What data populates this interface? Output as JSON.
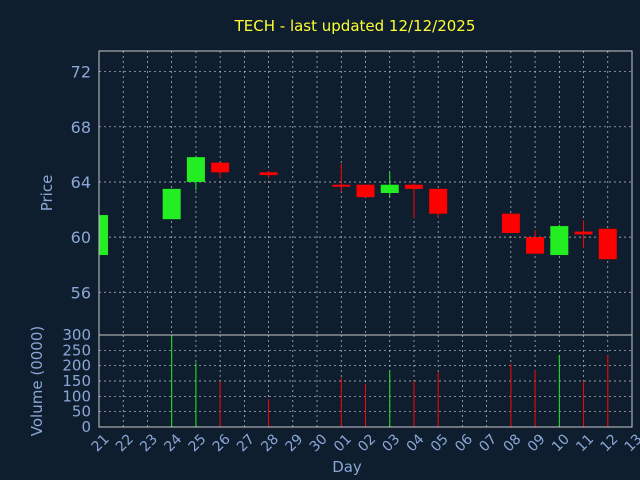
{
  "chart_data": {
    "type": "candlestick",
    "title": "TECH - last updated 12/12/2025",
    "price_axis": {
      "label": "Price",
      "ticks": [
        56,
        60,
        64,
        68,
        72
      ],
      "ylim": [
        52.9,
        73.5
      ]
    },
    "volume_axis": {
      "label": "Volume (0000)",
      "ticks": [
        0,
        50,
        100,
        150,
        200,
        250,
        300
      ],
      "ylim": [
        0,
        300
      ]
    },
    "xlabel": "Day",
    "x_ticks": [
      "21",
      "22",
      "23",
      "24",
      "25",
      "26",
      "27",
      "28",
      "29",
      "30",
      "01",
      "02",
      "03",
      "04",
      "05",
      "06",
      "07",
      "08",
      "09",
      "10",
      "11",
      "12",
      "13"
    ],
    "grid": true,
    "colors": {
      "up": "#22ee22",
      "down": "#ff0000",
      "background": "#0f1e2e",
      "text": "#8aa7d6",
      "title": "#ffff33"
    },
    "candles": [
      {
        "day": "21",
        "open": 58.7,
        "high": 61.6,
        "low": 58.7,
        "close": 61.6,
        "volume": 170
      },
      {
        "day": "24",
        "open": 61.3,
        "high": 63.5,
        "low": 61.3,
        "close": 63.5,
        "volume": 300
      },
      {
        "day": "25",
        "open": 64.0,
        "high": 65.9,
        "low": 63.4,
        "close": 65.8,
        "volume": 210
      },
      {
        "day": "26",
        "open": 65.4,
        "high": 65.4,
        "low": 64.3,
        "close": 64.7,
        "volume": 150
      },
      {
        "day": "28",
        "open": 64.7,
        "high": 64.8,
        "low": 64.3,
        "close": 64.5,
        "volume": 90
      },
      {
        "day": "01",
        "open": 63.8,
        "high": 65.3,
        "low": 63.3,
        "close": 63.7,
        "volume": 160
      },
      {
        "day": "02",
        "open": 63.8,
        "high": 63.8,
        "low": 62.9,
        "close": 62.9,
        "volume": 140
      },
      {
        "day": "03",
        "open": 63.2,
        "high": 64.7,
        "low": 62.9,
        "close": 63.8,
        "volume": 185
      },
      {
        "day": "04",
        "open": 63.8,
        "high": 63.9,
        "low": 61.4,
        "close": 63.5,
        "volume": 150
      },
      {
        "day": "05",
        "open": 63.5,
        "high": 63.5,
        "low": 61.4,
        "close": 61.7,
        "volume": 180
      },
      {
        "day": "08",
        "open": 61.7,
        "high": 61.7,
        "low": 60.3,
        "close": 60.3,
        "volume": 205
      },
      {
        "day": "09",
        "open": 60.0,
        "high": 60.5,
        "low": 58.8,
        "close": 58.8,
        "volume": 185
      },
      {
        "day": "10",
        "open": 58.7,
        "high": 60.9,
        "low": 58.7,
        "close": 60.8,
        "volume": 235
      },
      {
        "day": "11",
        "open": 60.4,
        "high": 61.2,
        "low": 59.2,
        "close": 60.2,
        "volume": 150
      },
      {
        "day": "12",
        "open": 60.6,
        "high": 60.6,
        "low": 58.4,
        "close": 58.4,
        "volume": 235
      }
    ]
  }
}
